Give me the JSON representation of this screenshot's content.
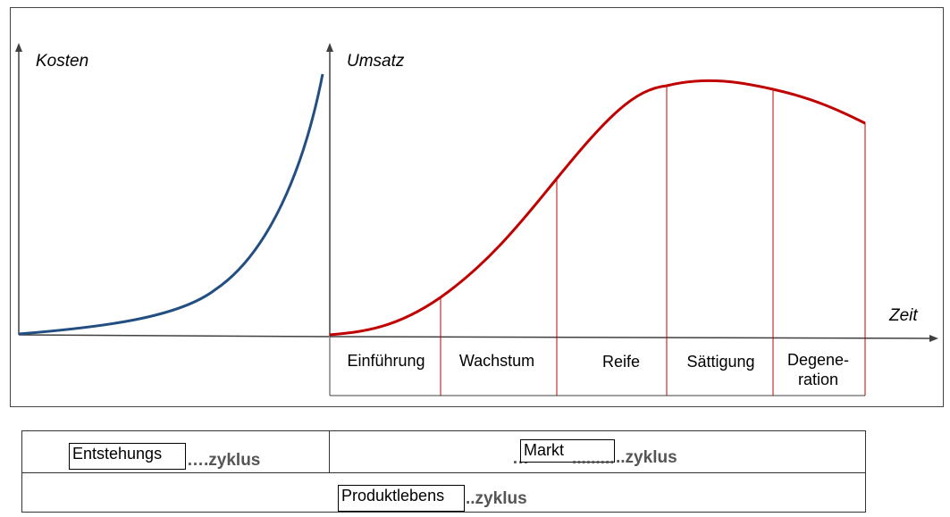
{
  "axes": {
    "cost_label": "Kosten",
    "sales_label": "Umsatz",
    "time_label": "Zeit"
  },
  "phases": [
    "Einführung",
    "Wachstum",
    "Reife",
    "Sättigung",
    "Degene-",
    "ration"
  ],
  "cycles": {
    "origin_box": "Entstehungs",
    "origin_suffix": "….zyklus",
    "market_box": "Markt",
    "market_prefix": "…",
    "market_dots": ".........",
    "market_suffix": "..zyklus",
    "product_box": "Produktlebens",
    "product_suffix": "..zyklus"
  },
  "colors": {
    "cost_curve": "#224e82",
    "sales_curve": "#c00000",
    "phase_lines": "#c00000",
    "axes": "#404040"
  }
}
